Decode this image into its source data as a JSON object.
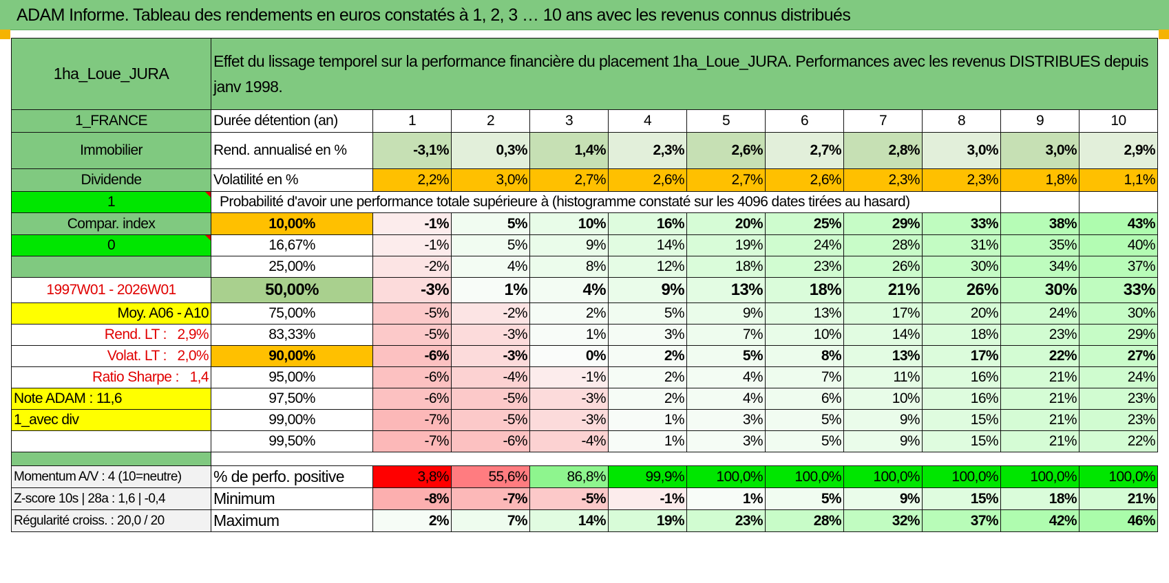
{
  "title": "ADAM Informe. Tableau des rendements en euros constatés à 1, 2, 3 … 10 ans avec les revenus connus distribués",
  "colors": {
    "green": "#80c980",
    "bright_green": "#00e600",
    "yellow": "#ffff00",
    "orange": "#ffc000",
    "red_text": "#e00000"
  },
  "fund_name": "1ha_Loue_JURA",
  "header_text": "Effet du lissage temporel sur la performance financière du placement 1ha_Loue_JURA. Performances avec les revenus DISTRIBUES depuis janv 1998.",
  "left": {
    "country": "1_FRANCE",
    "asset_class": "Immobilier",
    "income": "Dividende",
    "input1": "1",
    "compar": "Compar. index",
    "input2": "0",
    "period": "1997W01 - 2026W01",
    "moy": "Moy. A06 - A10",
    "rend_lt_label": "Rend. LT :",
    "rend_lt_value": "2,9%",
    "volat_lt_label": "Volat. LT :",
    "volat_lt_value": "2,0%",
    "sharpe_label": "Ratio Sharpe :",
    "sharpe_value": "1,4",
    "note": "Note ADAM : 11,6",
    "div": "1_avec div"
  },
  "durations_label": "Durée détention (an)",
  "durations": [
    "1",
    "2",
    "3",
    "4",
    "5",
    "6",
    "7",
    "8",
    "9",
    "10"
  ],
  "rend_label": "Rend. annualisé en %",
  "rend": [
    "-3,1%",
    "0,3%",
    "1,4%",
    "2,3%",
    "2,6%",
    "2,7%",
    "2,8%",
    "3,0%",
    "3,0%",
    "2,9%"
  ],
  "vol_label": "Volatilité en %",
  "vol": [
    "2,2%",
    "3,0%",
    "2,7%",
    "2,6%",
    "2,7%",
    "2,6%",
    "2,3%",
    "2,3%",
    "1,8%",
    "1,1%"
  ],
  "prob_title": "Probabilité d'avoir une performance totale supérieure à (histogramme constaté sur les 4096 dates tirées au hasard)",
  "quantiles": [
    {
      "p": "10,00%",
      "v": [
        "-1%",
        "5%",
        "10%",
        "16%",
        "20%",
        "25%",
        "29%",
        "33%",
        "38%",
        "43%"
      ]
    },
    {
      "p": "16,67%",
      "v": [
        "-1%",
        "5%",
        "9%",
        "14%",
        "19%",
        "24%",
        "28%",
        "31%",
        "35%",
        "40%"
      ]
    },
    {
      "p": "25,00%",
      "v": [
        "-2%",
        "4%",
        "8%",
        "12%",
        "18%",
        "23%",
        "26%",
        "30%",
        "34%",
        "37%"
      ]
    },
    {
      "p": "50,00%",
      "v": [
        "-3%",
        "1%",
        "4%",
        "9%",
        "13%",
        "18%",
        "21%",
        "26%",
        "30%",
        "33%"
      ]
    },
    {
      "p": "75,00%",
      "v": [
        "-5%",
        "-2%",
        "2%",
        "5%",
        "9%",
        "13%",
        "17%",
        "20%",
        "24%",
        "30%"
      ]
    },
    {
      "p": "83,33%",
      "v": [
        "-5%",
        "-3%",
        "1%",
        "3%",
        "7%",
        "10%",
        "14%",
        "18%",
        "23%",
        "29%"
      ]
    },
    {
      "p": "90,00%",
      "v": [
        "-6%",
        "-3%",
        "0%",
        "2%",
        "5%",
        "8%",
        "13%",
        "17%",
        "22%",
        "27%"
      ]
    },
    {
      "p": "95,00%",
      "v": [
        "-6%",
        "-4%",
        "-1%",
        "2%",
        "4%",
        "7%",
        "11%",
        "16%",
        "21%",
        "24%"
      ]
    },
    {
      "p": "97,50%",
      "v": [
        "-6%",
        "-5%",
        "-3%",
        "2%",
        "4%",
        "6%",
        "10%",
        "16%",
        "21%",
        "23%"
      ]
    },
    {
      "p": "99,00%",
      "v": [
        "-7%",
        "-5%",
        "-3%",
        "1%",
        "3%",
        "5%",
        "9%",
        "15%",
        "21%",
        "23%"
      ]
    },
    {
      "p": "99,50%",
      "v": [
        "-7%",
        "-6%",
        "-4%",
        "1%",
        "3%",
        "5%",
        "9%",
        "15%",
        "21%",
        "22%"
      ]
    }
  ],
  "bottom": {
    "momentum": "Momentum A/V : 4 (10=neutre)",
    "zscore": "Z-score 10s | 28a : 1,6 | -0,4",
    "regularite": "Régularité croiss. : 20,0 / 20",
    "pos_label": "% de perfo. positive",
    "pos": [
      "3,8%",
      "55,6%",
      "86,8%",
      "99,9%",
      "100,0%",
      "100,0%",
      "100,0%",
      "100,0%",
      "100,0%",
      "100,0%"
    ],
    "min_label": "Minimum",
    "min": [
      "-8%",
      "-7%",
      "-5%",
      "-1%",
      "1%",
      "5%",
      "9%",
      "15%",
      "18%",
      "21%"
    ],
    "max_label": "Maximum",
    "max": [
      "2%",
      "7%",
      "14%",
      "19%",
      "23%",
      "28%",
      "32%",
      "37%",
      "42%",
      "46%"
    ]
  }
}
